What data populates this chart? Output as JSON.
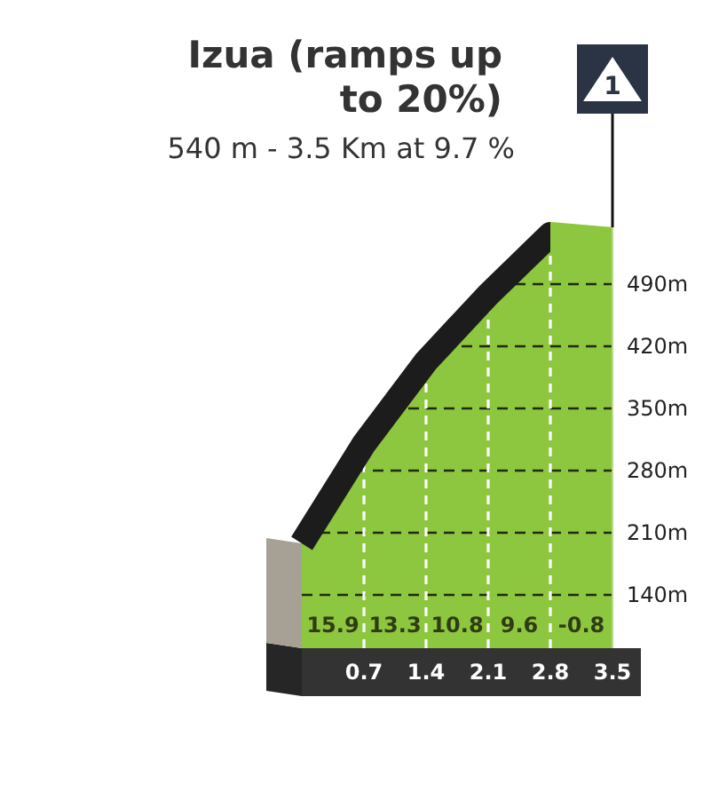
{
  "chart_data": {
    "type": "area",
    "title": "Izua (ramps up to 20%)",
    "subtitle": "540 m - 3.5 Km at 9.7 %",
    "x": [
      0,
      0.7,
      1.4,
      2.1,
      2.8,
      3.5
    ],
    "values": [
      198,
      310,
      403,
      478,
      546,
      540
    ],
    "color": "#8dc63f",
    "xlim": [
      0,
      3.5
    ],
    "ylim": [
      80,
      560
    ],
    "xticks": [
      0.7,
      1.4,
      2.1,
      2.8,
      3.5
    ],
    "yticks": [
      {
        "value": 140,
        "label": "140m"
      },
      {
        "value": 210,
        "label": "210m"
      },
      {
        "value": 280,
        "label": "280m"
      },
      {
        "value": 350,
        "label": "350m"
      },
      {
        "value": 420,
        "label": "420m"
      },
      {
        "value": 490,
        "label": "490m"
      }
    ],
    "grid": true,
    "annotations": [
      "15.9",
      "13.3",
      "10.8",
      "9.6",
      "-0.8",
      {
        "text": "1",
        "x": 3.5,
        "y": 540
      }
    ]
  }
}
